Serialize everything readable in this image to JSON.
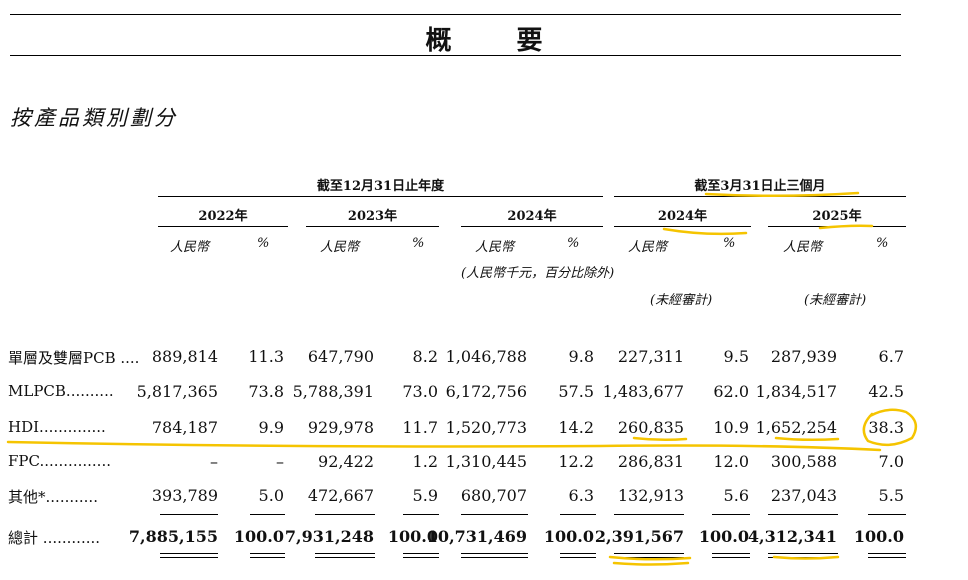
{
  "title": "概 要",
  "section_title": "按產品類別劃分",
  "headers": {
    "fy_group": "截至12月31日止年度",
    "q_group": "截至3月31日止三個月",
    "years": [
      "2022年",
      "2023年",
      "2024年",
      "2024年",
      "2025年"
    ],
    "rmb": "人民幣",
    "pct": "%",
    "unit_note": "(人民幣千元，百分比除外)",
    "unaudited": "(未經審計)"
  },
  "rows": [
    {
      "label": "單層及雙層PCB",
      "dots": "....",
      "values": [
        "889,814",
        "11.3",
        "647,790",
        "8.2",
        "1,046,788",
        "9.8",
        "227,311",
        "9.5",
        "287,939",
        "6.7"
      ]
    },
    {
      "label": "MLPCB",
      "dots": "..........",
      "values": [
        "5,817,365",
        "73.8",
        "5,788,391",
        "73.0",
        "6,172,756",
        "57.5",
        "1,483,677",
        "62.0",
        "1,834,517",
        "42.5"
      ]
    },
    {
      "label": "HDI",
      "dots": "..............",
      "values": [
        "784,187",
        "9.9",
        "929,978",
        "11.7",
        "1,520,773",
        "14.2",
        "260,835",
        "10.9",
        "1,652,254",
        "38.3"
      ]
    },
    {
      "label": "FPC",
      "dots": "...............",
      "values": [
        "–",
        "–",
        "92,422",
        "1.2",
        "1,310,445",
        "12.2",
        "286,831",
        "12.0",
        "300,588",
        "7.0"
      ]
    },
    {
      "label": "其他*",
      "dots": "...........",
      "values": [
        "393,789",
        "5.0",
        "472,667",
        "5.9",
        "680,707",
        "6.3",
        "132,913",
        "5.6",
        "237,043",
        "5.5"
      ]
    }
  ],
  "total": {
    "label": "總計",
    "dots": "............",
    "values": [
      "7,885,155",
      "100.0",
      "7,931,248",
      "100.0",
      "10,731,469",
      "100.0",
      "2,391,567",
      "100.0",
      "4,312,341",
      "100.0"
    ]
  },
  "colors": {
    "highlight": "#f5c400"
  }
}
